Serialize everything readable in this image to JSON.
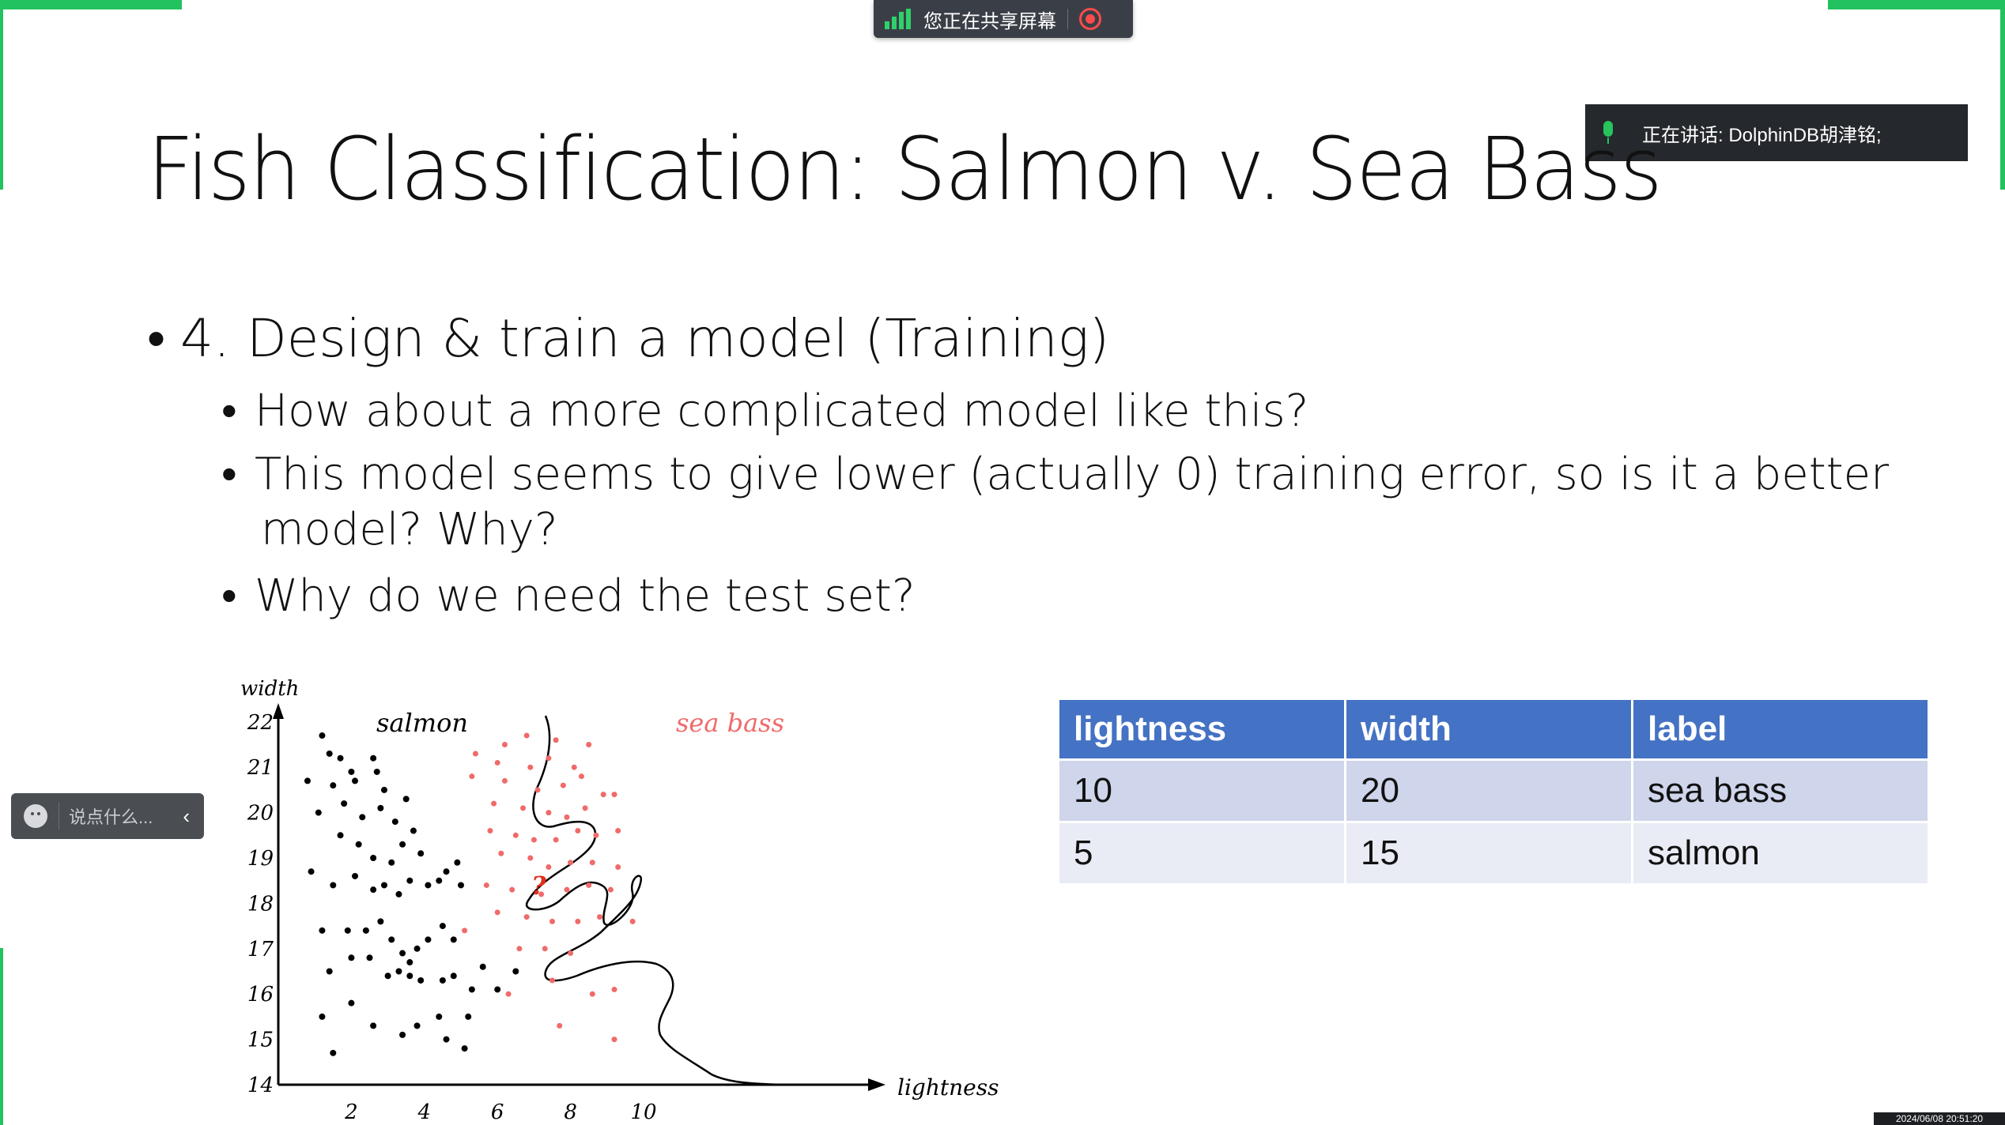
{
  "share_bar": {
    "text": "您正在共享屏幕"
  },
  "speaker": {
    "label": "正在讲话: DolphinDB胡津铭;"
  },
  "slide": {
    "title": "Fish Classification: Salmon v. Sea Bass",
    "bullet_main": "4. Design & train a model (Training)",
    "sub_bullets": [
      "How about a more complicated model like this?",
      "This model seems to give lower (actually 0) training error, so is it a better",
      "model? Why?",
      "Why do we need the test set?"
    ]
  },
  "chart_data": {
    "type": "scatter",
    "xlabel": "lightness",
    "ylabel": "width",
    "xlim": [
      0,
      11
    ],
    "ylim": [
      14,
      22
    ],
    "x_ticks": [
      "2",
      "4",
      "6",
      "8",
      "10"
    ],
    "y_ticks": [
      "14",
      "15",
      "16",
      "17",
      "18",
      "19",
      "20",
      "21",
      "22"
    ],
    "annotations": [
      "salmon",
      "sea bass",
      "?"
    ],
    "series": [
      {
        "name": "salmon",
        "color": "#000000",
        "points": [
          [
            1.2,
            21.7
          ],
          [
            1.4,
            21.3
          ],
          [
            1.7,
            21.2
          ],
          [
            2.0,
            20.9
          ],
          [
            2.6,
            21.2
          ],
          [
            2.7,
            20.9
          ],
          [
            0.8,
            20.7
          ],
          [
            1.5,
            20.6
          ],
          [
            2.1,
            20.7
          ],
          [
            2.9,
            20.5
          ],
          [
            1.1,
            20.0
          ],
          [
            1.8,
            20.2
          ],
          [
            2.3,
            19.9
          ],
          [
            2.8,
            20.1
          ],
          [
            3.2,
            19.8
          ],
          [
            3.5,
            20.3
          ],
          [
            3.7,
            19.6
          ],
          [
            1.7,
            19.5
          ],
          [
            2.2,
            19.3
          ],
          [
            2.6,
            19.0
          ],
          [
            3.1,
            18.9
          ],
          [
            3.4,
            19.3
          ],
          [
            3.9,
            19.1
          ],
          [
            0.9,
            18.7
          ],
          [
            1.5,
            18.4
          ],
          [
            2.1,
            18.6
          ],
          [
            2.6,
            18.3
          ],
          [
            2.9,
            18.4
          ],
          [
            3.3,
            18.2
          ],
          [
            3.6,
            18.5
          ],
          [
            4.1,
            18.4
          ],
          [
            4.4,
            18.5
          ],
          [
            4.6,
            18.7
          ],
          [
            4.9,
            18.9
          ],
          [
            5.0,
            18.4
          ],
          [
            1.2,
            17.4
          ],
          [
            1.9,
            17.4
          ],
          [
            2.4,
            17.4
          ],
          [
            2.8,
            17.6
          ],
          [
            3.1,
            17.2
          ],
          [
            3.4,
            16.9
          ],
          [
            3.6,
            16.7
          ],
          [
            3.8,
            17.0
          ],
          [
            4.1,
            17.2
          ],
          [
            4.5,
            17.5
          ],
          [
            4.8,
            17.2
          ],
          [
            1.4,
            16.5
          ],
          [
            2.0,
            16.8
          ],
          [
            2.5,
            16.8
          ],
          [
            3.0,
            16.4
          ],
          [
            3.3,
            16.5
          ],
          [
            3.6,
            16.4
          ],
          [
            3.9,
            16.3
          ],
          [
            4.5,
            16.3
          ],
          [
            4.8,
            16.4
          ],
          [
            5.3,
            16.1
          ],
          [
            5.6,
            16.6
          ],
          [
            6.0,
            16.1
          ],
          [
            6.5,
            16.5
          ],
          [
            1.2,
            15.5
          ],
          [
            2.0,
            15.8
          ],
          [
            2.6,
            15.3
          ],
          [
            3.4,
            15.1
          ],
          [
            3.8,
            15.3
          ],
          [
            4.4,
            15.5
          ],
          [
            4.6,
            15.0
          ],
          [
            5.1,
            14.8
          ],
          [
            1.5,
            14.7
          ],
          [
            5.2,
            15.5
          ]
        ]
      },
      {
        "name": "sea bass",
        "color": "#f06a6a",
        "points": [
          [
            6.2,
            21.5
          ],
          [
            6.8,
            21.7
          ],
          [
            7.6,
            21.6
          ],
          [
            5.4,
            21.3
          ],
          [
            6.0,
            21.1
          ],
          [
            6.9,
            21.0
          ],
          [
            7.4,
            21.2
          ],
          [
            8.1,
            21.0
          ],
          [
            8.5,
            21.5
          ],
          [
            5.3,
            20.8
          ],
          [
            6.2,
            20.7
          ],
          [
            7.1,
            20.5
          ],
          [
            7.8,
            20.6
          ],
          [
            8.3,
            20.8
          ],
          [
            8.9,
            20.4
          ],
          [
            5.9,
            20.2
          ],
          [
            6.7,
            20.1
          ],
          [
            7.4,
            20.0
          ],
          [
            7.9,
            19.9
          ],
          [
            8.4,
            20.1
          ],
          [
            5.8,
            19.6
          ],
          [
            6.5,
            19.5
          ],
          [
            7.0,
            19.4
          ],
          [
            7.6,
            19.4
          ],
          [
            8.2,
            19.6
          ],
          [
            8.7,
            19.5
          ],
          [
            6.1,
            19.1
          ],
          [
            6.9,
            19.0
          ],
          [
            7.4,
            18.8
          ],
          [
            8.0,
            18.9
          ],
          [
            8.6,
            18.9
          ],
          [
            9.3,
            18.8
          ],
          [
            5.7,
            18.4
          ],
          [
            6.4,
            18.3
          ],
          [
            7.2,
            18.2
          ],
          [
            7.9,
            18.3
          ],
          [
            8.5,
            18.4
          ],
          [
            9.1,
            18.3
          ],
          [
            6.0,
            17.8
          ],
          [
            6.8,
            17.7
          ],
          [
            7.5,
            17.6
          ],
          [
            8.2,
            17.6
          ],
          [
            8.8,
            17.7
          ],
          [
            9.7,
            17.6
          ],
          [
            6.6,
            17.0
          ],
          [
            7.3,
            17.0
          ],
          [
            8.0,
            16.9
          ],
          [
            5.1,
            17.4
          ],
          [
            7.5,
            16.3
          ],
          [
            8.6,
            16.0
          ],
          [
            9.2,
            16.1
          ],
          [
            6.3,
            16.0
          ],
          [
            7.7,
            15.3
          ],
          [
            9.2,
            15.0
          ],
          [
            9.3,
            19.6
          ],
          [
            9.2,
            20.4
          ]
        ]
      }
    ]
  },
  "table": {
    "headers": [
      "lightness",
      "width",
      "label"
    ],
    "rows": [
      [
        "10",
        "20",
        "sea bass"
      ],
      [
        "5",
        "15",
        "salmon"
      ]
    ]
  },
  "chat": {
    "placeholder": "说点什么..."
  },
  "timestamp": "2024/06/08 20:51:20"
}
